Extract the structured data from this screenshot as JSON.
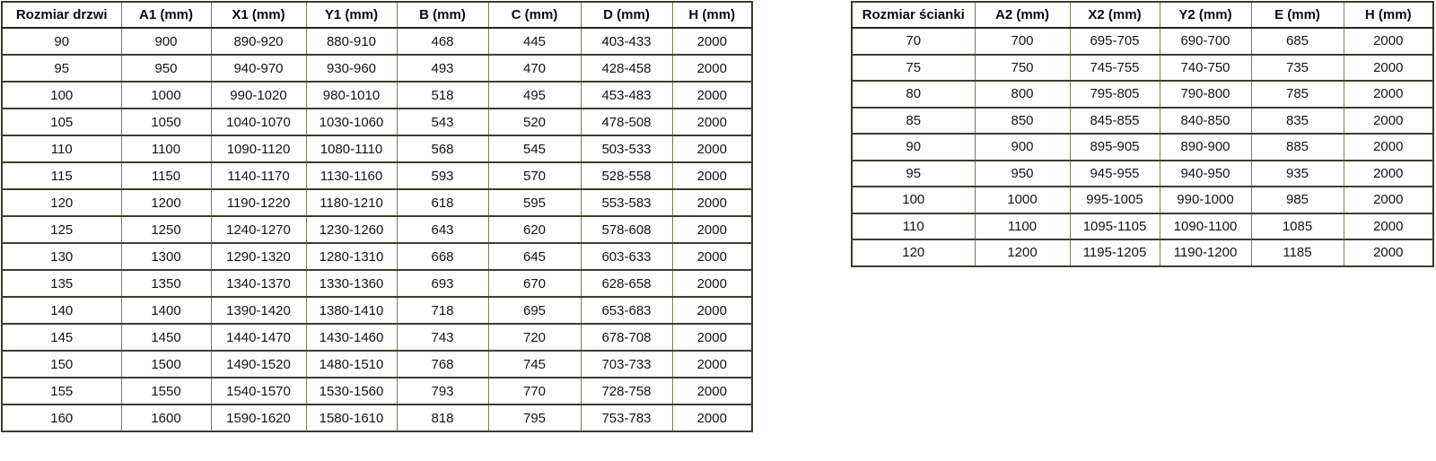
{
  "document": {
    "language": "pl",
    "background_color": "#ffffff",
    "text_color": "#141414",
    "border_dark_color": "#3d3d2e",
    "border_olive_color": "#7b7f55"
  },
  "tables": [
    {
      "name": "door-size-table",
      "headers": [
        "Rozmiar drzwi",
        "A1 (mm)",
        "X1 (mm)",
        "Y1 (mm)",
        "B (mm)",
        "C (mm)",
        "D (mm)",
        "H (mm)"
      ],
      "rows": [
        [
          "90",
          "900",
          "890-920",
          "880-910",
          "468",
          "445",
          "403-433",
          "2000"
        ],
        [
          "95",
          "950",
          "940-970",
          "930-960",
          "493",
          "470",
          "428-458",
          "2000"
        ],
        [
          "100",
          "1000",
          "990-1020",
          "980-1010",
          "518",
          "495",
          "453-483",
          "2000"
        ],
        [
          "105",
          "1050",
          "1040-1070",
          "1030-1060",
          "543",
          "520",
          "478-508",
          "2000"
        ],
        [
          "110",
          "1100",
          "1090-1120",
          "1080-1110",
          "568",
          "545",
          "503-533",
          "2000"
        ],
        [
          "115",
          "1150",
          "1140-1170",
          "1130-1160",
          "593",
          "570",
          "528-558",
          "2000"
        ],
        [
          "120",
          "1200",
          "1190-1220",
          "1180-1210",
          "618",
          "595",
          "553-583",
          "2000"
        ],
        [
          "125",
          "1250",
          "1240-1270",
          "1230-1260",
          "643",
          "620",
          "578-608",
          "2000"
        ],
        [
          "130",
          "1300",
          "1290-1320",
          "1280-1310",
          "668",
          "645",
          "603-633",
          "2000"
        ],
        [
          "135",
          "1350",
          "1340-1370",
          "1330-1360",
          "693",
          "670",
          "628-658",
          "2000"
        ],
        [
          "140",
          "1400",
          "1390-1420",
          "1380-1410",
          "718",
          "695",
          "653-683",
          "2000"
        ],
        [
          "145",
          "1450",
          "1440-1470",
          "1430-1460",
          "743",
          "720",
          "678-708",
          "2000"
        ],
        [
          "150",
          "1500",
          "1490-1520",
          "1480-1510",
          "768",
          "745",
          "703-733",
          "2000"
        ],
        [
          "155",
          "1550",
          "1540-1570",
          "1530-1560",
          "793",
          "770",
          "728-758",
          "2000"
        ],
        [
          "160",
          "1600",
          "1590-1620",
          "1580-1610",
          "818",
          "795",
          "753-783",
          "2000"
        ]
      ]
    },
    {
      "name": "wall-size-table",
      "headers": [
        "Rozmiar ścianki",
        "A2 (mm)",
        "X2 (mm)",
        "Y2 (mm)",
        "E (mm)",
        "H (mm)"
      ],
      "rows": [
        [
          "70",
          "700",
          "695-705",
          "690-700",
          "685",
          "2000"
        ],
        [
          "75",
          "750",
          "745-755",
          "740-750",
          "735",
          "2000"
        ],
        [
          "80",
          "800",
          "795-805",
          "790-800",
          "785",
          "2000"
        ],
        [
          "85",
          "850",
          "845-855",
          "840-850",
          "835",
          "2000"
        ],
        [
          "90",
          "900",
          "895-905",
          "890-900",
          "885",
          "2000"
        ],
        [
          "95",
          "950",
          "945-955",
          "940-950",
          "935",
          "2000"
        ],
        [
          "100",
          "1000",
          "995-1005",
          "990-1000",
          "985",
          "2000"
        ],
        [
          "110",
          "1100",
          "1095-1105",
          "1090-1100",
          "1085",
          "2000"
        ],
        [
          "120",
          "1200",
          "1195-1205",
          "1190-1200",
          "1185",
          "2000"
        ]
      ]
    }
  ]
}
